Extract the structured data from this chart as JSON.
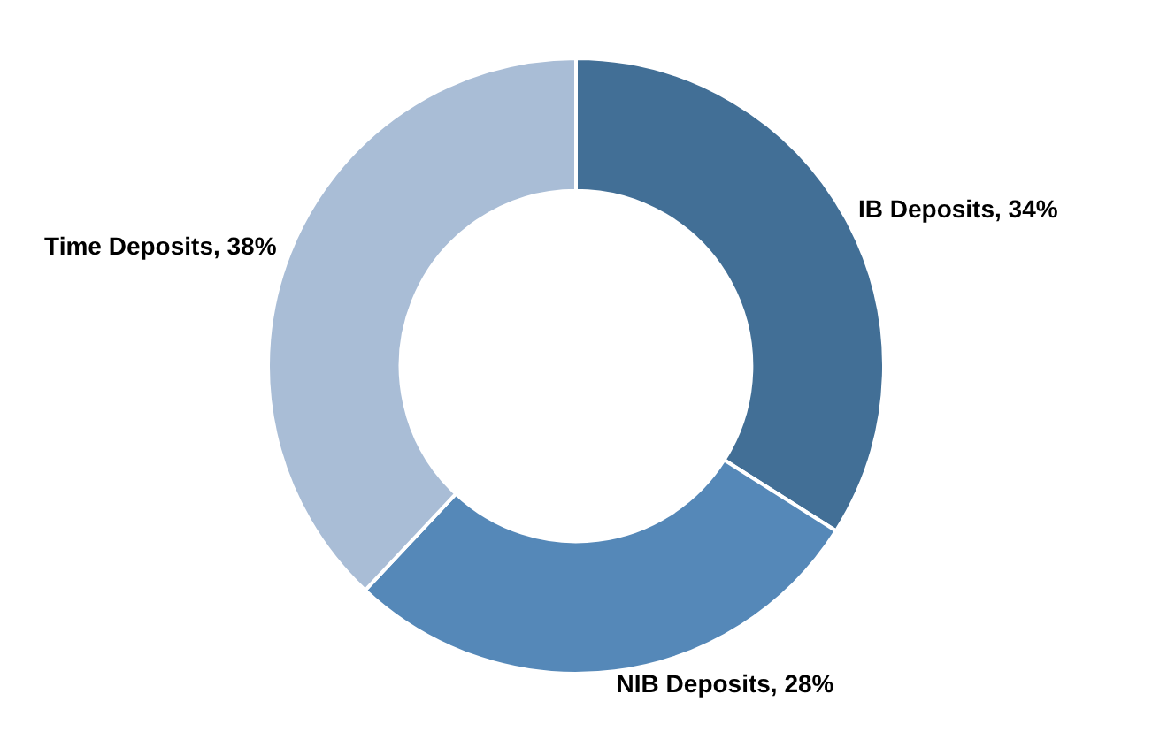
{
  "chart_data": {
    "type": "donut",
    "categories": [
      "IB Deposits",
      "NIB Deposits",
      "Time Deposits"
    ],
    "values": [
      34,
      28,
      38
    ],
    "value_labels": [
      "34%",
      "28%",
      "38%"
    ],
    "colors": [
      "#426f96",
      "#5588b8",
      "#a9bdd6"
    ],
    "legend": false
  }
}
